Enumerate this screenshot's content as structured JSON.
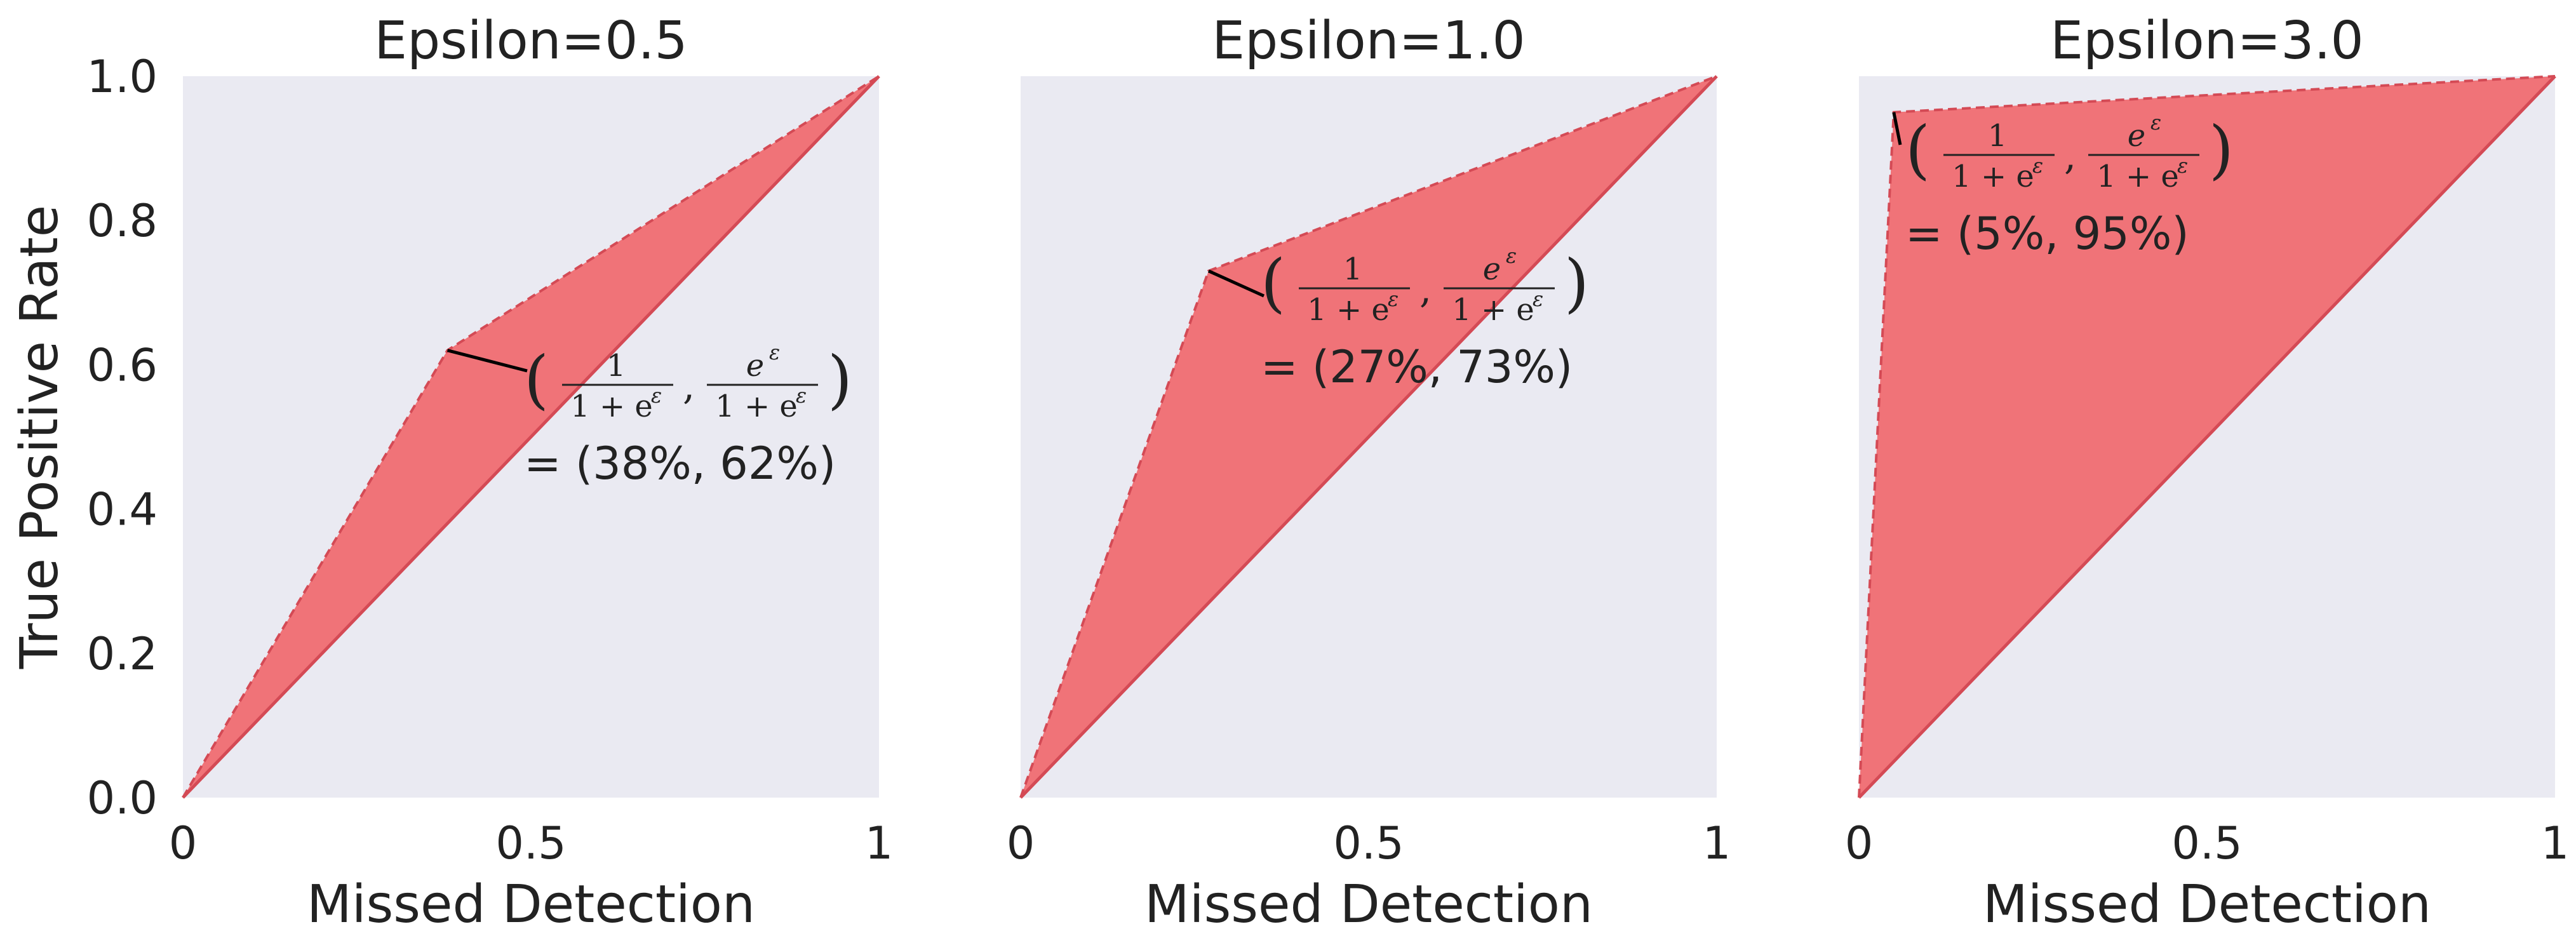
{
  "figure": {
    "ylabel": "True Positive Rate",
    "xlabel": "Missed Detection",
    "colors": {
      "fill": "#f07378",
      "edge": "#d44a55",
      "panel_bg": "#eaeaf2",
      "text": "#222222"
    }
  },
  "chart_data": [
    {
      "type": "area",
      "title": "Epsilon=0.5",
      "xlabel": "Missed Detection",
      "ylabel": "True Positive Rate",
      "xlim": [
        0,
        1
      ],
      "ylim": [
        0,
        1
      ],
      "xticks": [
        0,
        0.5,
        1
      ],
      "xtick_labels": [
        "0",
        "0.5",
        "1"
      ],
      "yticks": [
        0,
        0.2,
        0.4,
        0.6,
        0.8,
        1.0
      ],
      "ytick_labels": [
        "0.0",
        "0.2",
        "0.4",
        "0.6",
        "0.8",
        "1.0"
      ],
      "grid": false,
      "region_vertices": [
        [
          0,
          0
        ],
        [
          0.38,
          0.62
        ],
        [
          1,
          1
        ]
      ],
      "corner_point": [
        0.38,
        0.62
      ],
      "annotation": {
        "formula_prefix": "(",
        "num1": "1",
        "den": "1 + e",
        "sup": "ε",
        "num2": "e",
        "sep": ",",
        "suffix": ")",
        "value": "= (38%, 62%)"
      }
    },
    {
      "type": "area",
      "title": "Epsilon=1.0",
      "xlabel": "Missed Detection",
      "ylabel": "",
      "xlim": [
        0,
        1
      ],
      "ylim": [
        0,
        1
      ],
      "xticks": [
        0,
        0.5,
        1
      ],
      "xtick_labels": [
        "0",
        "0.5",
        "1"
      ],
      "grid": false,
      "region_vertices": [
        [
          0,
          0
        ],
        [
          0.27,
          0.73
        ],
        [
          1,
          1
        ]
      ],
      "corner_point": [
        0.27,
        0.73
      ],
      "annotation": {
        "formula_prefix": "(",
        "num1": "1",
        "den": "1 + e",
        "sup": "ε",
        "num2": "e",
        "sep": ",",
        "suffix": ")",
        "value": "= (27%, 73%)"
      }
    },
    {
      "type": "area",
      "title": "Epsilon=3.0",
      "xlabel": "Missed Detection",
      "ylabel": "",
      "xlim": [
        0,
        1
      ],
      "ylim": [
        0,
        1
      ],
      "xticks": [
        0,
        0.5,
        1
      ],
      "xtick_labels": [
        "0",
        "0.5",
        "1"
      ],
      "grid": false,
      "region_vertices": [
        [
          0,
          0
        ],
        [
          0.05,
          0.95
        ],
        [
          1,
          1
        ]
      ],
      "corner_point": [
        0.05,
        0.95
      ],
      "annotation": {
        "formula_prefix": "(",
        "num1": "1",
        "den": "1 + e",
        "sup": "ε",
        "num2": "e",
        "sep": ",",
        "suffix": ")",
        "value": "= (5%, 95%)"
      }
    }
  ]
}
